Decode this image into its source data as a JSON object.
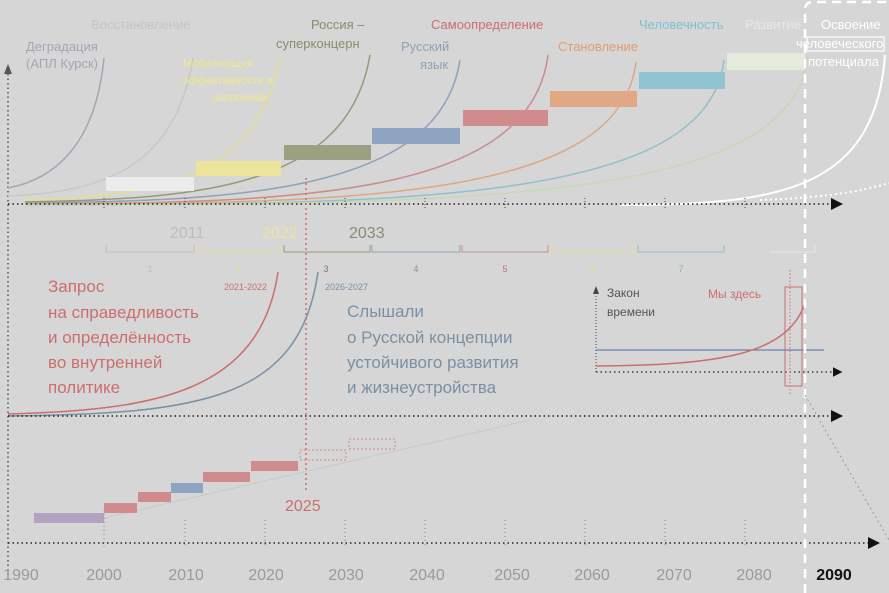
{
  "colors": {
    "background": "#d6d6d6",
    "axis": "#4a4a4a",
    "degradation": "#a8a4b4",
    "recovery": "#c4c4c4",
    "economic": "#e6df8c",
    "superconcern": "#969a7a",
    "language": "#8ea2b8",
    "selfdetermination": "#cc8c8c",
    "formation": "#dca884",
    "humanity": "#90c0cc",
    "development": "#c8d8b4",
    "development_text": "#e8e8e8",
    "potential": "#ffffff",
    "red": "#cc6e6e",
    "blue": "#7b90a4"
  },
  "top_phases": {
    "phase_1": "Деградация",
    "phase_1b": "(АПЛ Курск)",
    "phase_2": "Восстановление",
    "phase_3a": "Мобилизация",
    "phase_3b": "эффективности и",
    "phase_3c": "экономики",
    "phase_4a": "Россия –",
    "phase_4b": "суперконцерн",
    "phase_5a": "Русский",
    "phase_5b": "язык",
    "phase_6": "Самоопределение",
    "phase_7": "Становление",
    "phase_8": "Человечность",
    "phase_9": "Развитие",
    "phase_10a": "Освоение",
    "phase_10b": "человеческого",
    "phase_10c": "потенциала"
  },
  "milestones": {
    "y2011": "2011",
    "y2022": "2022",
    "y2033": "2033",
    "y2025": "2025"
  },
  "brackets": [
    "1",
    "2",
    "3",
    "4",
    "5",
    "6",
    "7"
  ],
  "brackets_sub": {
    "b2": "2021-2022",
    "b3": "2026-2027"
  },
  "middle": {
    "left_1": "Запрос",
    "left_2": "на справедливость",
    "left_3": "и определённость",
    "left_4": "во внутренней",
    "left_5": "политике",
    "right_1": "Слышали",
    "right_2": "о Русской концепции",
    "right_3": "устойчивого развития",
    "right_4": "и жизнеустройства"
  },
  "inset": {
    "law_1": "Закон",
    "law_2": "времени",
    "here": "Мы здесь"
  },
  "x_axis": {
    "years": [
      "1990",
      "2000",
      "2010",
      "2020",
      "2030",
      "2040",
      "2050",
      "2060",
      "2070",
      "2080"
    ],
    "final_year": "2090"
  }
}
